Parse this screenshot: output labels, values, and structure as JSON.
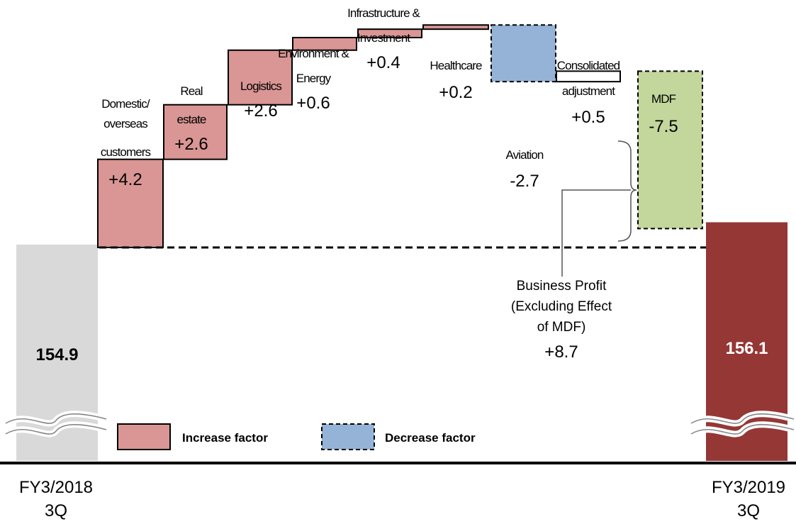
{
  "chart_data": {
    "type": "bar",
    "subtype": "waterfall",
    "categories": [
      "FY3/2018 3Q",
      "Domestic/ overseas customers",
      "Real estate",
      "Logistics",
      "Environment & Energy",
      "Infrastructure & Investment",
      "Healthcare",
      "Aviation",
      "Consolidated adjustment",
      "MDF",
      "FY3/2019 3Q"
    ],
    "start": {
      "label_line1": "FY3/2018",
      "label_line2": "3Q",
      "value": 154.9,
      "value_text": "154.9"
    },
    "end": {
      "label_line1": "FY3/2019",
      "label_line2": "3Q",
      "value": 156.1,
      "value_text": "156.1"
    },
    "steps": [
      {
        "label_lines": [
          "Domestic/",
          "overseas",
          "customers"
        ],
        "value": 4.2,
        "value_text": "+4.2",
        "factor": "increase"
      },
      {
        "label_lines": [
          "Real",
          "estate"
        ],
        "value": 2.6,
        "value_text": "+2.6",
        "factor": "increase"
      },
      {
        "label_lines": [
          "Logistics"
        ],
        "value": 2.6,
        "value_text": "+2.6",
        "factor": "increase"
      },
      {
        "label_lines": [
          "Environment &",
          "Energy"
        ],
        "value": 0.6,
        "value_text": "+0.6",
        "factor": "increase"
      },
      {
        "label_lines": [
          "Infrastructure &",
          "Investment"
        ],
        "value": 0.4,
        "value_text": "+0.4",
        "factor": "increase"
      },
      {
        "label_lines": [
          "Healthcare"
        ],
        "value": 0.2,
        "value_text": "+0.2",
        "factor": "increase"
      },
      {
        "label_lines": [
          "Aviation"
        ],
        "value": -2.7,
        "value_text": "-2.7",
        "factor": "decrease"
      },
      {
        "label_lines": [
          "Consolidated",
          "adjustment"
        ],
        "value": 0.5,
        "value_text": "+0.5",
        "factor": "neutral"
      },
      {
        "label_lines": [
          "MDF"
        ],
        "value": -7.5,
        "value_text": "-7.5",
        "factor": "mdf"
      }
    ],
    "annotation": {
      "lines": [
        "Business Profit",
        "(Excluding Effect",
        "of MDF)"
      ],
      "value_text": "+8.7"
    },
    "legend": [
      {
        "label": "Increase factor",
        "color": "#d99694",
        "style": "solid"
      },
      {
        "label": "Decrease factor",
        "color": "#95b3d7",
        "style": "dashed"
      }
    ],
    "legend_position": "bottom-center",
    "axis_break": true,
    "grid": false
  },
  "colors": {
    "start_bar": "#d9d9d9",
    "end_bar": "#953735",
    "increase": "#d99694",
    "decrease": "#95b3d7",
    "mdf": "#c3d69b",
    "neutral": "#ffffff"
  }
}
